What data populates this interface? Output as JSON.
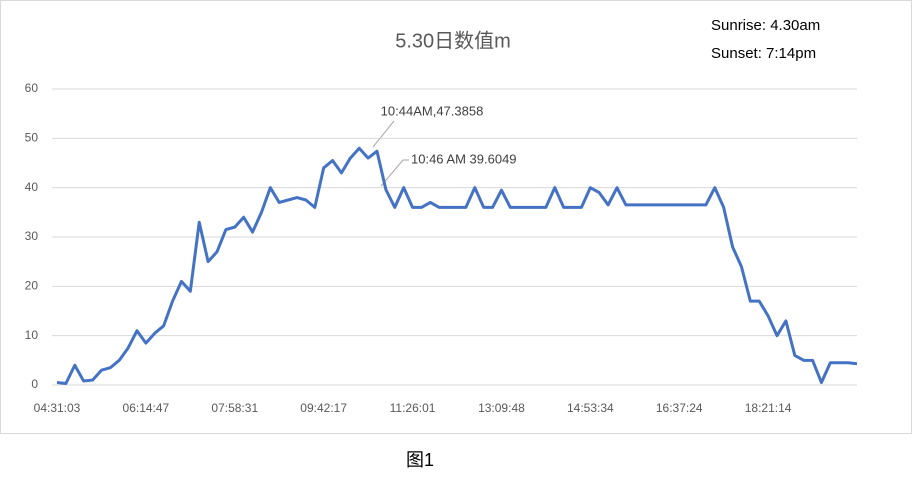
{
  "chart_data": {
    "type": "line",
    "title": "5.30日数值m",
    "notes": [
      "Sunrise: 4.30am",
      "Sunset:  7:14pm"
    ],
    "annotations": [
      "10:44AM,47.3858",
      "10:46 AM 39.6049"
    ],
    "caption": "图1",
    "categories": [
      "04:31:03",
      null,
      null,
      null,
      null,
      null,
      null,
      null,
      null,
      null,
      "06:14:47",
      null,
      null,
      null,
      null,
      null,
      null,
      null,
      null,
      null,
      "07:58:31",
      null,
      null,
      null,
      null,
      null,
      null,
      null,
      null,
      null,
      "09:42:17",
      null,
      null,
      null,
      null,
      null,
      null,
      null,
      null,
      null,
      "11:26:01",
      null,
      null,
      null,
      null,
      null,
      null,
      null,
      null,
      null,
      "13:09:48",
      null,
      null,
      null,
      null,
      null,
      null,
      null,
      null,
      null,
      "14:53:34",
      null,
      null,
      null,
      null,
      null,
      null,
      null,
      null,
      null,
      "16:37:24",
      null,
      null,
      null,
      null,
      null,
      null,
      null,
      null,
      null,
      "18:21:14",
      null,
      null,
      null,
      null,
      null,
      null,
      null,
      null,
      null,
      null
    ],
    "values": [
      0.5,
      0.3,
      4,
      0.8,
      1,
      3,
      3.5,
      5,
      7.5,
      11,
      8.5,
      10.5,
      12,
      17,
      21,
      19,
      33,
      25,
      27,
      31.5,
      32,
      34,
      31,
      35,
      40,
      37,
      37.5,
      38,
      37.5,
      36,
      44,
      45.5,
      43,
      46,
      48,
      46,
      47.3858,
      39.6049,
      36,
      40,
      36,
      36,
      37,
      36,
      36,
      36,
      36,
      40,
      36,
      36,
      39.5,
      36,
      36,
      36,
      36,
      36,
      40,
      36,
      36,
      36,
      40,
      39,
      36.5,
      40,
      36.5,
      36.5,
      36.5,
      36.5,
      36.5,
      36.5,
      36.5,
      36.5,
      36.5,
      36.5,
      40,
      36,
      28,
      24,
      17,
      17,
      14,
      10,
      13,
      6,
      5,
      5,
      0.5,
      4.5,
      4.5,
      4.5,
      4.3
    ],
    "color": "#4472c4",
    "ylim": [
      0,
      60
    ],
    "yticks": [
      0,
      10,
      20,
      30,
      40,
      50,
      60
    ],
    "grid": true
  }
}
